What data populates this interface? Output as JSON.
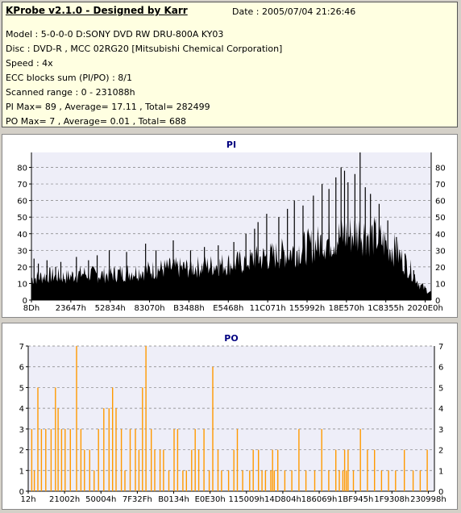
{
  "info": {
    "title": "KProbe v2.1.0 - Designed by Karr",
    "date": "Date : 2005/07/04 21:26:46",
    "lines": [
      "Model : 5-0-0-0 D:SONY    DVD RW DRU-800A  KY03",
      "Disc : DVD-R , MCC 02RG20  [Mitsubishi Chemical Corporation]",
      "Speed : 4x",
      "ECC blocks sum (PI/PO) : 8/1",
      "Scanned range : 0 - 231088h",
      "PI Max= 89 , Average= 17.11 , Total= 282499",
      "PO Max= 7 , Average= 0.01 , Total= 688"
    ]
  },
  "colors": {
    "pi_fill": "#000000",
    "po_bar": "#ff9900",
    "plot_bg": "#eeeef8",
    "grid": "#808080",
    "title_color": "#000080"
  },
  "chart_data": [
    {
      "type": "area",
      "title": "PI",
      "ylim": [
        0,
        89
      ],
      "yticks": [
        0,
        10,
        20,
        30,
        40,
        50,
        60,
        70,
        80
      ],
      "xlim": [
        0,
        231088
      ],
      "grid": true,
      "xtick_labels": [
        "8Dh",
        "23647h",
        "52834h",
        "83070h",
        "B3488h",
        "E5468h",
        "11C071h",
        "155992h",
        "18E570h",
        "1C8355h",
        "2020E0h"
      ],
      "x": [
        0,
        10000,
        20000,
        30000,
        40000,
        50000,
        60000,
        70000,
        80000,
        90000,
        100000,
        110000,
        120000,
        130000,
        140000,
        150000,
        160000,
        170000,
        180000,
        190000,
        200000,
        210000,
        220000,
        225000,
        231088
      ],
      "y": [
        12,
        14,
        13,
        15,
        14,
        15,
        16,
        17,
        18,
        18,
        19,
        20,
        21,
        23,
        25,
        27,
        30,
        33,
        36,
        38,
        35,
        28,
        16,
        8,
        4
      ],
      "peaks": [
        [
          1500,
          25
        ],
        [
          4000,
          22
        ],
        [
          9000,
          24
        ],
        [
          14000,
          20
        ],
        [
          17000,
          23
        ],
        [
          26000,
          26
        ],
        [
          33000,
          24
        ],
        [
          38000,
          27
        ],
        [
          45000,
          30
        ],
        [
          55000,
          29
        ],
        [
          66000,
          34
        ],
        [
          72000,
          30
        ],
        [
          82000,
          36
        ],
        [
          92000,
          30
        ],
        [
          100000,
          32
        ],
        [
          108000,
          33
        ],
        [
          117000,
          35
        ],
        [
          124000,
          40
        ],
        [
          129000,
          43
        ],
        [
          131000,
          47
        ],
        [
          136000,
          52
        ],
        [
          143000,
          50
        ],
        [
          148000,
          55
        ],
        [
          152000,
          60
        ],
        [
          157000,
          57
        ],
        [
          163000,
          63
        ],
        [
          168000,
          70
        ],
        [
          172000,
          67
        ],
        [
          176000,
          74
        ],
        [
          179000,
          80
        ],
        [
          181000,
          78
        ],
        [
          183000,
          71
        ],
        [
          187000,
          76
        ],
        [
          190000,
          89
        ],
        [
          193000,
          68
        ],
        [
          196000,
          64
        ],
        [
          201000,
          58
        ],
        [
          206000,
          48
        ],
        [
          211000,
          38
        ],
        [
          216000,
          28
        ],
        [
          221000,
          18
        ],
        [
          226000,
          10
        ]
      ]
    },
    {
      "type": "bar",
      "title": "PO",
      "ylim": [
        0,
        7
      ],
      "yticks": [
        0,
        1,
        2,
        3,
        4,
        5,
        6,
        7
      ],
      "xlim": [
        0,
        231088
      ],
      "grid": true,
      "xtick_labels": [
        "12h",
        "21002h",
        "50004h",
        "7F32Fh",
        "B0134h",
        "E0E30h",
        "115009h",
        "14D804h",
        "186069h",
        "1BF945h",
        "1F9308h",
        "230998h"
      ],
      "x": [
        2000,
        3500,
        5500,
        7500,
        10000,
        13000,
        15500,
        17000,
        19000,
        21000,
        24000,
        27500,
        30000,
        32000,
        35000,
        37500,
        40000,
        43000,
        46000,
        48000,
        50000,
        53000,
        55000,
        58000,
        61000,
        63000,
        65000,
        67000,
        70000,
        72000,
        75000,
        77000,
        80000,
        83000,
        85000,
        88000,
        90000,
        93000,
        95000,
        97000,
        100000,
        103000,
        105000,
        108000,
        110000,
        114000,
        117000,
        119000,
        122000,
        126000,
        128000,
        131000,
        133000,
        135000,
        138000,
        139000,
        140000,
        142000,
        146000,
        150000,
        154000,
        158000,
        163000,
        167000,
        171000,
        175000,
        177000,
        179000,
        180000,
        181000,
        182000,
        185000,
        189000,
        193000,
        197000,
        201000,
        205000,
        209000,
        214000,
        219000,
        223000,
        227000
      ],
      "values": [
        3,
        1,
        5,
        3,
        3,
        3,
        5,
        4,
        3,
        3,
        3,
        7,
        3,
        2,
        2,
        1,
        3,
        4,
        4,
        5,
        4,
        3,
        1,
        3,
        3,
        2,
        5,
        7,
        3,
        2,
        2,
        2,
        1,
        3,
        3,
        1,
        1,
        2,
        3,
        2,
        3,
        1,
        6,
        2,
        1,
        1,
        2,
        3,
        1,
        1,
        2,
        2,
        1,
        1,
        1,
        2,
        1,
        2,
        1,
        1,
        3,
        1,
        1,
        3,
        1,
        2,
        1,
        1,
        2,
        1,
        2,
        1,
        3,
        2,
        2,
        1,
        1,
        1,
        2,
        1,
        1,
        2
      ]
    }
  ]
}
